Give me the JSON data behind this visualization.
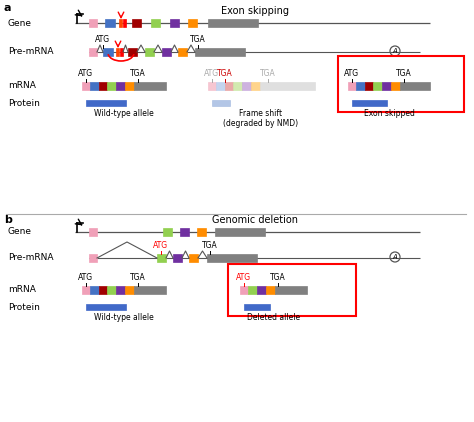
{
  "title_a": "Exon skipping",
  "title_b": "Genomic deletion",
  "label_a": "a",
  "label_b": "b",
  "gene_label": "Gene",
  "premrna_label": "Pre-mRNA",
  "mrna_label": "mRNA",
  "protein_label": "Protein",
  "wild_type_label": "Wild-type allele",
  "frame_shift_label": "Frame shift\n(degraded by NMD)",
  "exon_skipped_label": "Exon skipped",
  "deleted_allele_label": "Deleted allele",
  "colors": {
    "pink": "#F0A0B8",
    "blue": "#4472C4",
    "red_orange": "#FF4500",
    "red": "#FF0000",
    "dark_red": "#A00000",
    "green": "#92D050",
    "purple": "#7030A0",
    "orange": "#FF8C00",
    "gray": "#808080",
    "protein_blue": "#4169C8",
    "protein_light_blue": "#A0B8E0",
    "line_col": "#555555",
    "bg": "#FFFFFF"
  }
}
